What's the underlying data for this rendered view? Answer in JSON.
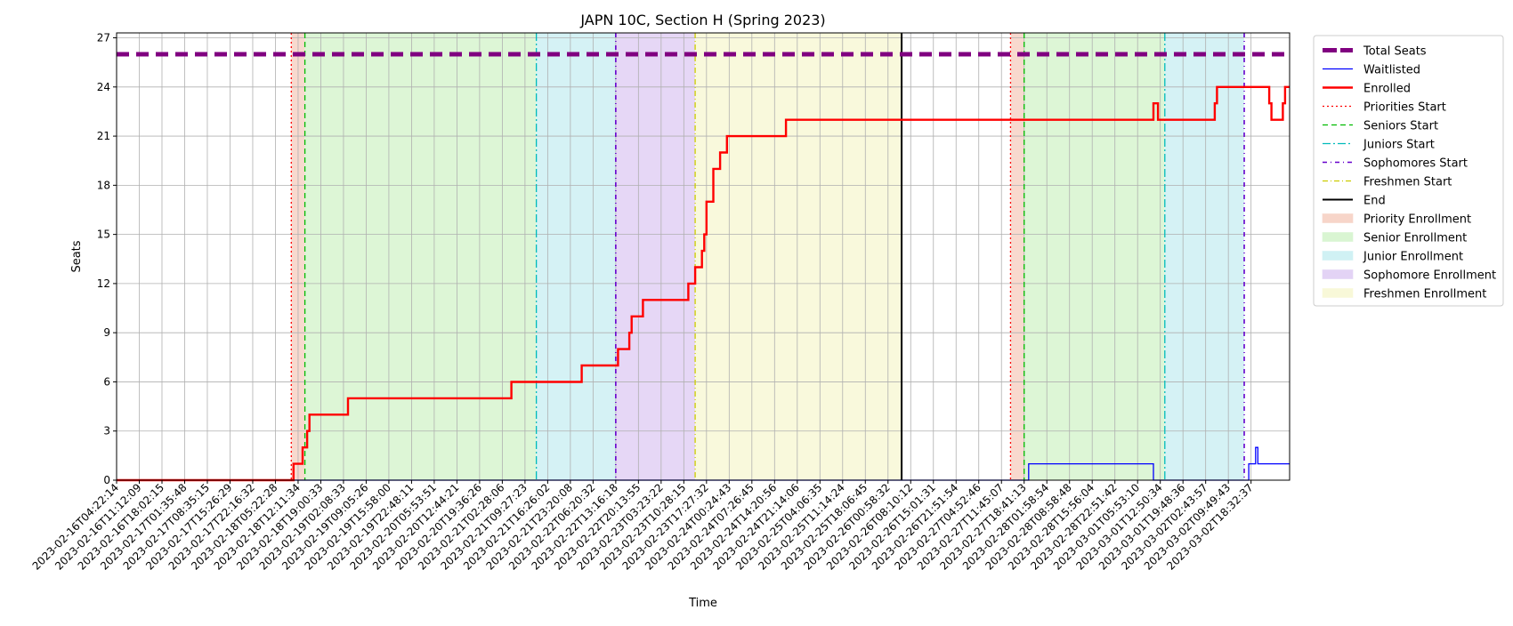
{
  "chart_data": {
    "type": "line",
    "title": "JAPN 10C, Section H (Spring 2023)",
    "xlabel": "Time",
    "ylabel": "Seats",
    "ylim": [
      0,
      27.3
    ],
    "yticks": [
      0,
      3,
      6,
      9,
      12,
      15,
      18,
      21,
      24,
      27
    ],
    "grid": true,
    "legend_position": "outside-right",
    "colors": {
      "total": "#800080",
      "waitlist": "#0000ff",
      "enrolled": "#ff0000",
      "priorities": "#ff0000",
      "seniors": "#00bb00",
      "juniors": "#00bbbb",
      "sophomores": "#6600cc",
      "freshmen": "#cccc00",
      "end": "#000000",
      "priority_band": "#f7d5c9",
      "senior_band": "#d9f5d2",
      "junior_band": "#d0f1f4",
      "sophomore_band": "#e3d3f5",
      "freshmen_band": "#f8f8d8"
    },
    "x_ticks": [
      "2023-02-16T04:22:14",
      "2023-02-16T11:12:09",
      "2023-02-16T18:02:15",
      "2023-02-17T01:35:48",
      "2023-02-17T08:35:15",
      "2023-02-17T15:26:29",
      "2023-02-17T22:16:32",
      "2023-02-18T05:22:28",
      "2023-02-18T12:11:34",
      "2023-02-18T19:00:33",
      "2023-02-19T02:08:33",
      "2023-02-19T09:05:26",
      "2023-02-19T15:58:00",
      "2023-02-19T22:48:11",
      "2023-02-20T05:53:51",
      "2023-02-20T12:44:21",
      "2023-02-20T19:36:26",
      "2023-02-21T02:28:06",
      "2023-02-21T09:27:23",
      "2023-02-21T16:26:02",
      "2023-02-21T23:20:08",
      "2023-02-22T06:20:32",
      "2023-02-22T13:16:18",
      "2023-02-22T20:13:55",
      "2023-02-23T03:23:22",
      "2023-02-23T10:28:15",
      "2023-02-23T17:27:32",
      "2023-02-24T00:24:43",
      "2023-02-24T07:26:45",
      "2023-02-24T14:20:56",
      "2023-02-24T21:14:06",
      "2023-02-25T04:06:35",
      "2023-02-25T11:14:24",
      "2023-02-25T18:06:45",
      "2023-02-26T00:58:32",
      "2023-02-26T08:10:12",
      "2023-02-26T15:01:31",
      "2023-02-26T21:51:54",
      "2023-02-27T04:52:46",
      "2023-02-27T11:45:07",
      "2023-02-27T18:41:13",
      "2023-02-28T01:58:54",
      "2023-02-28T08:58:48",
      "2023-02-28T15:56:04",
      "2023-02-28T22:51:42",
      "2023-03-01T05:53:10",
      "2023-03-01T12:50:34",
      "2023-03-01T19:48:36",
      "2023-03-02T02:43:57",
      "2023-03-02T09:49:43",
      "2023-03-02T18:32:37"
    ],
    "x_range": [
      0,
      51.7
    ],
    "bands": [
      {
        "name": "Priority Enrollment",
        "x0": 7.7,
        "x1": 8.3,
        "color": "#f7d5c9"
      },
      {
        "name": "Senior Enrollment",
        "x0": 8.3,
        "x1": 18.5,
        "color": "#d9f5d2"
      },
      {
        "name": "Junior Enrollment",
        "x0": 18.5,
        "x1": 22.0,
        "color": "#d0f1f4"
      },
      {
        "name": "Sophomore Enrollment",
        "x0": 22.0,
        "x1": 25.5,
        "color": "#e3d3f5"
      },
      {
        "name": "Freshmen Enrollment",
        "x0": 25.5,
        "x1": 34.6,
        "color": "#f8f8d8"
      },
      {
        "name": "Priority Enrollment",
        "x0": 39.4,
        "x1": 40.0,
        "color": "#f7d5c9"
      },
      {
        "name": "Senior Enrollment",
        "x0": 40.0,
        "x1": 46.2,
        "color": "#d9f5d2"
      },
      {
        "name": "Junior Enrollment",
        "x0": 46.2,
        "x1": 49.7,
        "color": "#d0f1f4"
      }
    ],
    "vlines": [
      {
        "name": "Priorities Start",
        "x": 7.7,
        "style": "priorities"
      },
      {
        "name": "Seniors Start",
        "x": 8.3,
        "style": "seniors"
      },
      {
        "name": "Juniors Start",
        "x": 18.5,
        "style": "juniors"
      },
      {
        "name": "Sophomores Start",
        "x": 22.0,
        "style": "sophomores"
      },
      {
        "name": "Freshmen Start",
        "x": 25.5,
        "style": "freshmen"
      },
      {
        "name": "End",
        "x": 34.6,
        "style": "end"
      },
      {
        "name": "Priorities Start",
        "x": 39.4,
        "style": "priorities"
      },
      {
        "name": "Seniors Start",
        "x": 40.0,
        "style": "seniors"
      },
      {
        "name": "Juniors Start",
        "x": 46.2,
        "style": "juniors"
      },
      {
        "name": "Sophomores Start",
        "x": 49.7,
        "style": "sophomores"
      }
    ],
    "series": [
      {
        "name": "Total Seats",
        "style": "total",
        "x": [
          0,
          51.7
        ],
        "y": [
          26,
          26
        ]
      },
      {
        "name": "Waitlisted",
        "style": "waitlist",
        "x": [
          0,
          40.2,
          40.2,
          45.7,
          45.7,
          49.9,
          49.9,
          50.2,
          50.2,
          50.3,
          50.3,
          51.7
        ],
        "y": [
          0,
          0,
          1,
          1,
          0,
          0,
          1,
          1,
          2,
          2,
          1,
          1
        ]
      },
      {
        "name": "Enrolled",
        "style": "enrolled",
        "x": [
          0,
          7.8,
          7.8,
          8.2,
          8.2,
          8.4,
          8.4,
          8.5,
          8.5,
          10.2,
          10.2,
          17.4,
          17.4,
          20.5,
          20.5,
          22.1,
          22.1,
          22.6,
          22.6,
          22.7,
          22.7,
          23.2,
          23.2,
          25.2,
          25.2,
          25.5,
          25.5,
          25.8,
          25.8,
          25.9,
          25.9,
          26.0,
          26.0,
          26.3,
          26.3,
          26.6,
          26.6,
          26.9,
          26.9,
          27.1,
          27.1,
          27.3,
          27.3,
          27.5,
          27.5,
          27.6,
          27.6,
          27.7,
          27.7,
          27.8,
          27.8,
          29.5,
          29.5,
          45.7,
          45.7,
          45.9,
          45.9,
          48.4,
          48.4,
          48.5,
          48.5,
          50.8,
          50.8,
          50.9,
          50.9,
          51.4,
          51.4,
          51.5,
          51.5,
          51.7
        ],
        "y": [
          0,
          0,
          1,
          1,
          2,
          2,
          3,
          3,
          4,
          4,
          5,
          5,
          6,
          6,
          7,
          7,
          8,
          8,
          9,
          9,
          10,
          10,
          11,
          11,
          12,
          12,
          13,
          13,
          14,
          14,
          15,
          15,
          17,
          17,
          19,
          19,
          20,
          20,
          21,
          21,
          21,
          21,
          21,
          21,
          21,
          21,
          21,
          21,
          21,
          21,
          21,
          21,
          22,
          22,
          23,
          23,
          22,
          22,
          23,
          23,
          24,
          24,
          23,
          23,
          22,
          22,
          23,
          23,
          24,
          24
        ]
      }
    ],
    "legend": [
      {
        "label": "Total Seats",
        "kind": "line",
        "style": "total"
      },
      {
        "label": "Waitlisted",
        "kind": "line",
        "style": "waitlist"
      },
      {
        "label": "Enrolled",
        "kind": "line",
        "style": "enrolled"
      },
      {
        "label": "Priorities Start",
        "kind": "line",
        "style": "priorities"
      },
      {
        "label": "Seniors Start",
        "kind": "line",
        "style": "seniors"
      },
      {
        "label": "Juniors Start",
        "kind": "line",
        "style": "juniors"
      },
      {
        "label": "Sophomores Start",
        "kind": "line",
        "style": "sophomores"
      },
      {
        "label": "Freshmen Start",
        "kind": "line",
        "style": "freshmen"
      },
      {
        "label": "End",
        "kind": "line",
        "style": "end"
      },
      {
        "label": "Priority Enrollment",
        "kind": "patch",
        "style": "priority_band"
      },
      {
        "label": "Senior Enrollment",
        "kind": "patch",
        "style": "senior_band"
      },
      {
        "label": "Junior Enrollment",
        "kind": "patch",
        "style": "junior_band"
      },
      {
        "label": "Sophomore Enrollment",
        "kind": "patch",
        "style": "sophomore_band"
      },
      {
        "label": "Freshmen Enrollment",
        "kind": "patch",
        "style": "freshmen_band"
      }
    ]
  }
}
